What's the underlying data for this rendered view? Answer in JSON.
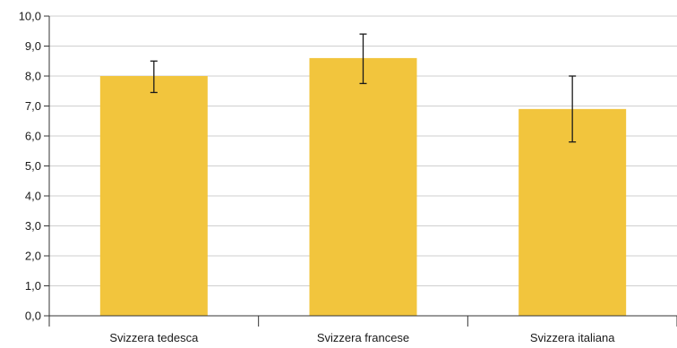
{
  "chart_data": {
    "type": "bar",
    "title": "",
    "xlabel": "",
    "ylabel": "",
    "ylim": [
      0,
      10
    ],
    "yticks": [
      "0,0",
      "1,0",
      "2,0",
      "3,0",
      "4,0",
      "5,0",
      "6,0",
      "7,0",
      "8,0",
      "9,0",
      "10,0"
    ],
    "grid": true,
    "legend": "none",
    "categories": [
      "Svizzera tedesca",
      "Svizzera francese",
      "Svizzera italiana"
    ],
    "values": [
      8.0,
      8.6,
      6.9
    ],
    "error_low": [
      7.45,
      7.75,
      5.8
    ],
    "error_high": [
      8.5,
      9.4,
      8.0
    ],
    "colors": {
      "bar": "#f2c53d",
      "grid": "#cfcfcf",
      "axis": "#333333",
      "error": "#1a1a1a"
    }
  }
}
